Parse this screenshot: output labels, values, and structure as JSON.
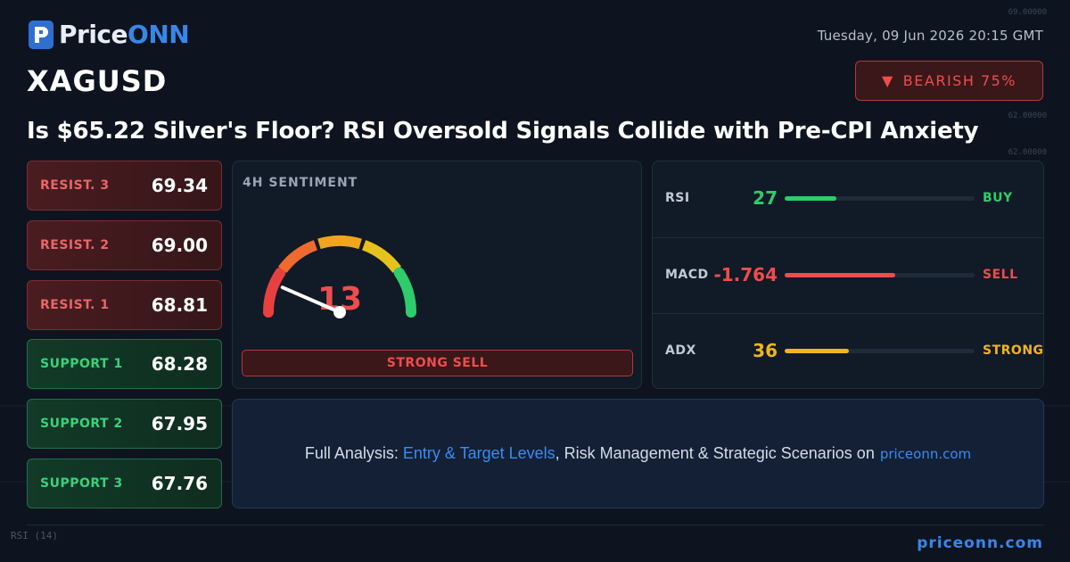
{
  "brand": {
    "name_part1": "Price",
    "name_part2": "ONN"
  },
  "header": {
    "datetime": "Tuesday, 09 Jun 2026 20:15 GMT",
    "symbol": "XAGUSD",
    "bias": {
      "arrow": "▼",
      "label": "BEARISH 75%",
      "color": "#ef4d4d"
    },
    "headline": "Is $65.22 Silver's Floor? RSI Oversold Signals Collide with Pre-CPI Anxiety"
  },
  "levels": [
    {
      "label": "RESIST. 3",
      "value": "69.34",
      "type": "resistance"
    },
    {
      "label": "RESIST. 2",
      "value": "69.00",
      "type": "resistance"
    },
    {
      "label": "RESIST. 1",
      "value": "68.81",
      "type": "resistance"
    },
    {
      "label": "SUPPORT 1",
      "value": "68.28",
      "type": "support"
    },
    {
      "label": "SUPPORT 2",
      "value": "67.95",
      "type": "support"
    },
    {
      "label": "SUPPORT 3",
      "value": "67.76",
      "type": "support"
    }
  ],
  "sentiment": {
    "title": "4H SENTIMENT",
    "score": "13",
    "score_value": 13,
    "scale_max": 100,
    "verdict": "STRONG SELL",
    "gauge_colors": [
      "#e84040",
      "#ef6a2e",
      "#f1a51c",
      "#e8c21c",
      "#2fcc6b"
    ]
  },
  "indicators": [
    {
      "name": "RSI",
      "value": "27",
      "fill_fraction": 0.27,
      "signal": "BUY",
      "color": "#2fcc6b"
    },
    {
      "name": "MACD",
      "value": "-1.764",
      "fill_fraction": 0.58,
      "signal": "SELL",
      "color": "#ef4d4d"
    },
    {
      "name": "ADX",
      "value": "36",
      "fill_fraction": 0.34,
      "signal": "STRONG",
      "color": "#f1b51c"
    }
  ],
  "cta": {
    "prefix": "Full Analysis: ",
    "highlight": "Entry & Target Levels",
    "middle": ", Risk Management & Strategic Scenarios on ",
    "site": "priceonn.com"
  },
  "background": {
    "price_axis": [
      "69.00000",
      "62.00000",
      "62.00000"
    ],
    "indicator_label": "RSI",
    "indicator_period": "(14)"
  },
  "footer": {
    "url": "priceonn.com"
  }
}
